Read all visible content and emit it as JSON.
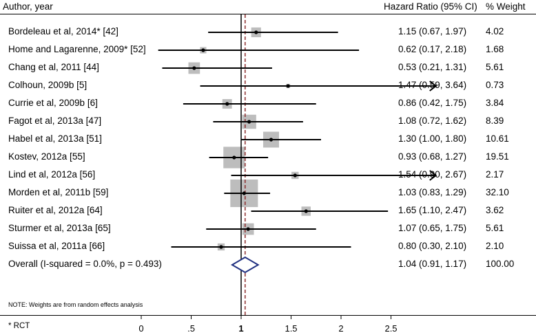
{
  "headers": {
    "author": "Author, year",
    "hr": "Hazard Ratio (95% CI)",
    "weight": "% Weight"
  },
  "note": "NOTE: Weights are from random effects analysis",
  "footnote": "* RCT",
  "colors": {
    "box": "#bdbdbd",
    "line": "#000000",
    "diamond": "#1f2f80",
    "reference": "#8b2c2c"
  },
  "chart_data": {
    "type": "forest",
    "title": "",
    "xlabel": "",
    "ylabel": "",
    "null_value": 1,
    "pooled_estimate_line": 1.04,
    "x_tick_values": [
      0,
      0.5,
      1,
      1.5,
      2,
      2.5
    ],
    "x_tick_labels": [
      "0",
      ".5",
      "1",
      "1.5",
      "2",
      "2.5"
    ],
    "xlim": [
      -0.52,
      2.95
    ],
    "studies": [
      {
        "label": "Bordeleau et al, 2014* [42]",
        "hr": 1.15,
        "lo": 0.67,
        "hi": 1.97,
        "ci_text": "1.15 (0.67, 1.97)",
        "weight": 4.02,
        "weight_text": "4.02",
        "arrow": false
      },
      {
        "label": "Home and Lagarenne, 2009* [52]",
        "hr": 0.62,
        "lo": 0.17,
        "hi": 2.18,
        "ci_text": "0.62 (0.17, 2.18)",
        "weight": 1.68,
        "weight_text": "1.68",
        "arrow": false
      },
      {
        "label": "Chang et al, 2011 [44]",
        "hr": 0.53,
        "lo": 0.21,
        "hi": 1.31,
        "ci_text": "0.53 (0.21, 1.31)",
        "weight": 5.61,
        "weight_text": "5.61",
        "arrow": false
      },
      {
        "label": "Colhoun, 2009b [5]",
        "hr": 1.47,
        "lo": 0.59,
        "hi": 3.64,
        "ci_text": "1.47 (0.59, 3.64)",
        "weight": 0.73,
        "weight_text": "0.73",
        "arrow": true
      },
      {
        "label": "Currie et al, 2009b [6]",
        "hr": 0.86,
        "lo": 0.42,
        "hi": 1.75,
        "ci_text": "0.86 (0.42, 1.75)",
        "weight": 3.84,
        "weight_text": "3.84",
        "arrow": false
      },
      {
        "label": "Fagot et al, 2013a [47]",
        "hr": 1.08,
        "lo": 0.72,
        "hi": 1.62,
        "ci_text": "1.08 (0.72, 1.62)",
        "weight": 8.39,
        "weight_text": "8.39",
        "arrow": false
      },
      {
        "label": "Habel et al, 2013a [51]",
        "hr": 1.3,
        "lo": 1.0,
        "hi": 1.8,
        "ci_text": "1.30 (1.00, 1.80)",
        "weight": 10.61,
        "weight_text": "10.61",
        "arrow": false
      },
      {
        "label": "Kostev, 2012a [55]",
        "hr": 0.93,
        "lo": 0.68,
        "hi": 1.27,
        "ci_text": "0.93 (0.68, 1.27)",
        "weight": 19.51,
        "weight_text": "19.51",
        "arrow": false
      },
      {
        "label": "Lind et al, 2012a [56]",
        "hr": 1.54,
        "lo": 0.9,
        "hi": 2.67,
        "ci_text": "1.54 (0.90, 2.67)",
        "weight": 2.17,
        "weight_text": "2.17",
        "arrow": true
      },
      {
        "label": "Morden et al, 2011b [59]",
        "hr": 1.03,
        "lo": 0.83,
        "hi": 1.29,
        "ci_text": "1.03 (0.83, 1.29)",
        "weight": 32.1,
        "weight_text": "32.10",
        "arrow": false
      },
      {
        "label": "Ruiter et al, 2012a [64]",
        "hr": 1.65,
        "lo": 1.1,
        "hi": 2.47,
        "ci_text": "1.65 (1.10, 2.47)",
        "weight": 3.62,
        "weight_text": "3.62",
        "arrow": false
      },
      {
        "label": "Sturmer et al, 2013a [65]",
        "hr": 1.07,
        "lo": 0.65,
        "hi": 1.75,
        "ci_text": "1.07 (0.65, 1.75)",
        "weight": 5.61,
        "weight_text": "5.61",
        "arrow": false
      },
      {
        "label": "Suissa et al, 2011a [66]",
        "hr": 0.8,
        "lo": 0.3,
        "hi": 2.1,
        "ci_text": "0.80 (0.30, 2.10)",
        "weight": 2.1,
        "weight_text": "2.10",
        "arrow": false
      }
    ],
    "overall": {
      "label": "Overall  (I-squared = 0.0%, p = 0.493)",
      "hr": 1.04,
      "lo": 0.91,
      "hi": 1.17,
      "ci_text": "1.04 (0.91, 1.17)",
      "weight_text": "100.00"
    }
  }
}
